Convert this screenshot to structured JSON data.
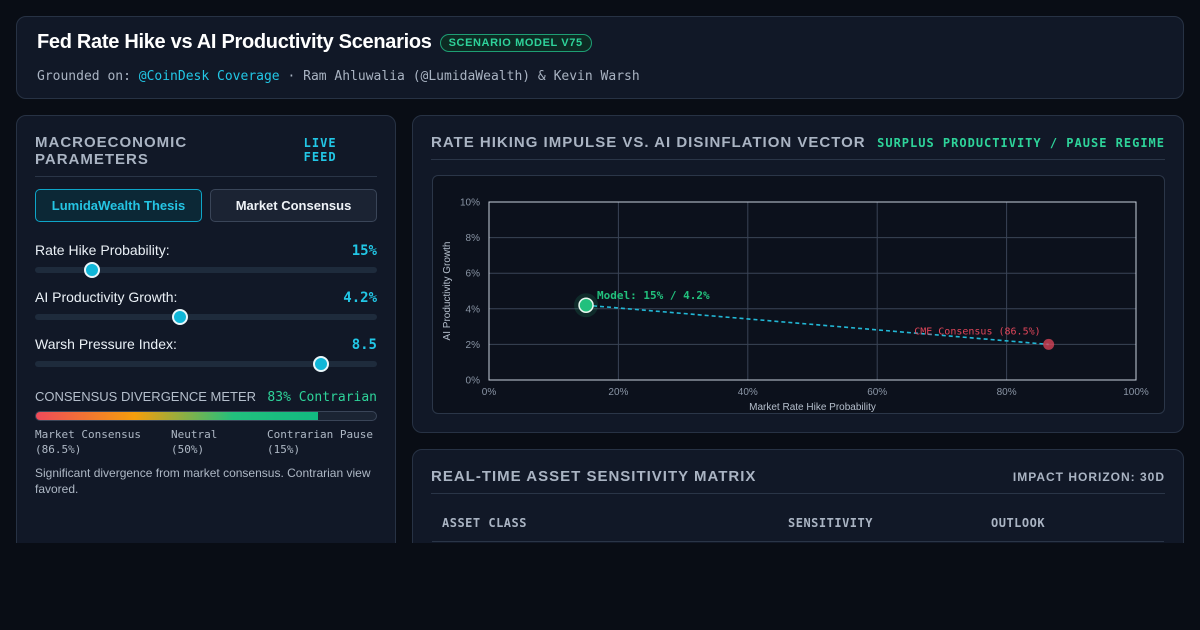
{
  "header": {
    "title": "Fed Rate Hike vs AI Productivity Scenarios",
    "badge": "SCENARIO MODEL V75",
    "grounded_prefix": "Grounded on:",
    "grounded_link": "@CoinDesk Coverage",
    "grounded_rest": "· Ram Ahluwalia (@LumidaWealth) & Kevin Warsh"
  },
  "params": {
    "title": "MACROECONOMIC PARAMETERS",
    "tag": "LIVE FEED",
    "tabs": [
      {
        "label": "LumidaWealth Thesis",
        "active": true
      },
      {
        "label": "Market Consensus",
        "active": false
      }
    ],
    "sliders": [
      {
        "label": "Rate Hike Probability:",
        "value_text": "15%",
        "level": 0.167
      },
      {
        "label": "AI Productivity Growth:",
        "value_text": "4.2%",
        "level": 0.424
      },
      {
        "label": "Warsh Pressure Index:",
        "value_text": "8.5",
        "level": 0.836
      }
    ],
    "meter": {
      "title": "CONSENSUS DIVERGENCE METER",
      "value_text": "83% Contrarian",
      "level": 0.83,
      "scale": [
        "Market Consensus (86.5%)",
        "Neutral (50%)",
        "Contrarian Pause (15%)"
      ],
      "note": "Significant divergence from market consensus. Contrarian view favored."
    }
  },
  "chart_panel": {
    "title": "RATE HIKING IMPULSE VS. AI DISINFLATION VECTOR",
    "tag": "SURPLUS PRODUCTIVITY / PAUSE REGIME"
  },
  "chart_data": {
    "type": "scatter",
    "xlabel": "Market Rate Hike Probability",
    "ylabel": "AI Productivity Growth",
    "xlim": [
      0,
      100
    ],
    "ylim": [
      0,
      10
    ],
    "x_ticks": [
      "0%",
      "20%",
      "40%",
      "60%",
      "80%",
      "100%"
    ],
    "y_ticks": [
      "0%",
      "2%",
      "4%",
      "6%",
      "8%",
      "10%"
    ],
    "grid": true,
    "points": [
      {
        "x": 15,
        "y": 4.2,
        "label": "Model: 15% / 4.2%",
        "color": "#22c07d"
      },
      {
        "x": 86.5,
        "y": 2.0,
        "label": "CME Consensus (86.5%)",
        "color": "#e0465a"
      }
    ],
    "connector": {
      "style": "dashed",
      "color": "#22b8d6"
    }
  },
  "matrix": {
    "title": "REAL-TIME ASSET SENSITIVITY MATRIX",
    "tag": "IMPACT HORIZON: 30D",
    "columns": [
      "ASSET CLASS",
      "SENSITIVITY",
      "OUTLOOK"
    ]
  },
  "colors": {
    "accent_cyan": "#22c7e6",
    "accent_green": "#2ed39a",
    "consensus_red": "#e0465a",
    "background": "#090d15",
    "card": "#111827"
  }
}
